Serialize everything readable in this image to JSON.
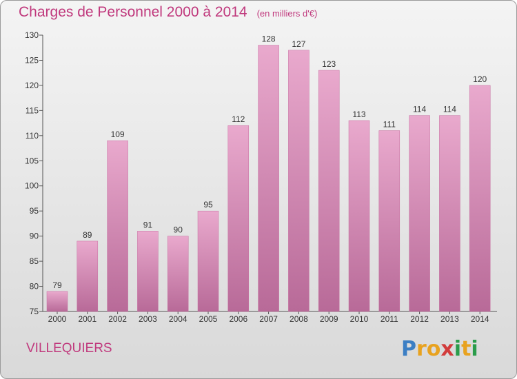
{
  "chart_data": {
    "type": "bar",
    "title": "Charges de Personnel 2000 à 2014",
    "subtitle": "(en milliers d'€)",
    "categories": [
      "2000",
      "2001",
      "2002",
      "2003",
      "2004",
      "2005",
      "2006",
      "2007",
      "2008",
      "2009",
      "2010",
      "2011",
      "2012",
      "2013",
      "2014"
    ],
    "values": [
      79,
      89,
      109,
      91,
      90,
      95,
      112,
      128,
      127,
      123,
      113,
      111,
      114,
      114,
      120
    ],
    "ylim": [
      75,
      130
    ],
    "yticks": [
      75,
      80,
      85,
      90,
      95,
      100,
      105,
      110,
      115,
      120,
      125,
      130
    ],
    "grid": false,
    "bar_color": "#d77fae"
  },
  "footer": {
    "city": "VILLEQUIERS",
    "logo_letters": [
      "P",
      "r",
      "o",
      "x",
      "i",
      "t",
      "i"
    ],
    "logo_colors": [
      "#3c7fc4",
      "#e8a21f",
      "#e8a21f",
      "#d23c3c",
      "#2a9c4a",
      "#e8a21f",
      "#2a9c4a"
    ]
  }
}
